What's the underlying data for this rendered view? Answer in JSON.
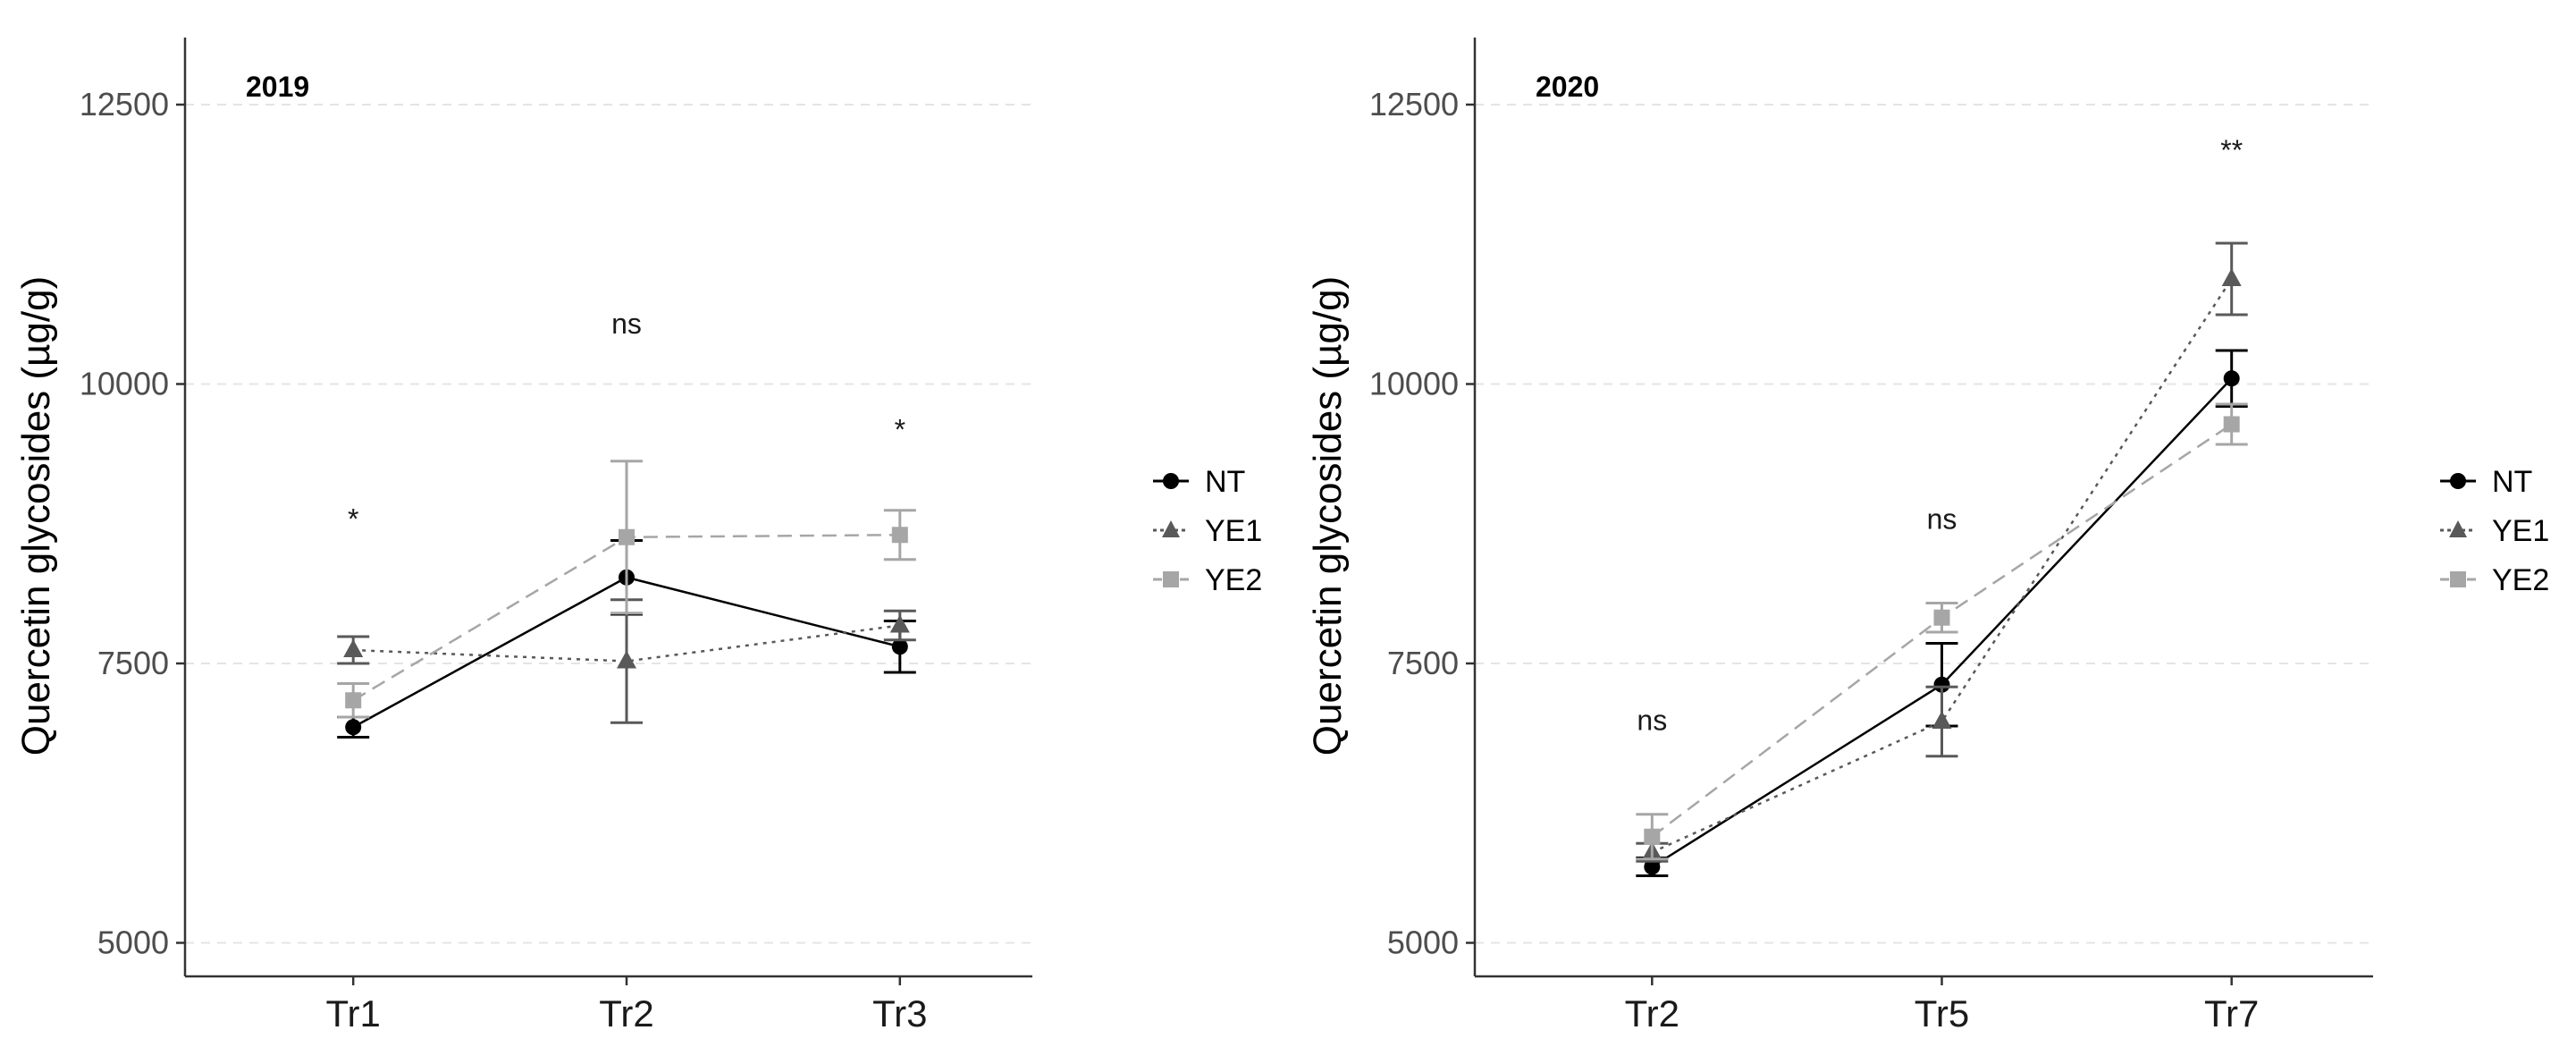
{
  "chart_data": [
    {
      "type": "line",
      "title": "",
      "panel_label": "2019",
      "xlabel": "",
      "ylabel": "Quercetin glycosides (µg/g)",
      "categories": [
        "Tr1",
        "Tr2",
        "Tr3"
      ],
      "ylim": [
        4700,
        13100
      ],
      "yticks": [
        5000,
        7500,
        10000,
        12500
      ],
      "grid": "horizontal dashed major lines",
      "legend": "right",
      "series": [
        {
          "name": "NT",
          "marker": "circle",
          "line": "solid",
          "color": "#000000",
          "values": [
            6930,
            8270,
            7650
          ],
          "err": [
            90,
            330,
            230
          ]
        },
        {
          "name": "YE1",
          "marker": "triangle",
          "line": "dotted",
          "color": "#595959",
          "values": [
            7620,
            7520,
            7840
          ],
          "err": [
            120,
            550,
            130
          ]
        },
        {
          "name": "YE2",
          "marker": "square",
          "line": "dashed",
          "color": "#a6a6a6",
          "values": [
            7170,
            8630,
            8650
          ],
          "err": [
            150,
            680,
            220
          ]
        }
      ],
      "annotations": [
        {
          "category": "Tr1",
          "text": "*",
          "y": 8800
        },
        {
          "category": "Tr2",
          "text": "ns",
          "y": 10550
        },
        {
          "category": "Tr3",
          "text": "*",
          "y": 9600
        }
      ]
    },
    {
      "type": "line",
      "title": "",
      "panel_label": "2020",
      "xlabel": "",
      "ylabel": "Quercetin glycosides (µg/g)",
      "categories": [
        "Tr2",
        "Tr5",
        "Tr7"
      ],
      "ylim": [
        4700,
        13100
      ],
      "yticks": [
        5000,
        7500,
        10000,
        12500
      ],
      "grid": "horizontal dashed major lines",
      "legend": "right",
      "series": [
        {
          "name": "NT",
          "marker": "circle",
          "line": "solid",
          "color": "#000000",
          "values": [
            5680,
            7310,
            10050
          ],
          "err": [
            80,
            370,
            250
          ]
        },
        {
          "name": "YE1",
          "marker": "triangle",
          "line": "dotted",
          "color": "#595959",
          "values": [
            5810,
            6980,
            10940
          ],
          "err": [
            80,
            310,
            320
          ]
        },
        {
          "name": "YE2",
          "marker": "square",
          "line": "dashed",
          "color": "#a6a6a6",
          "values": [
            5950,
            7910,
            9640
          ],
          "err": [
            200,
            130,
            180
          ]
        }
      ],
      "annotations": [
        {
          "category": "Tr2",
          "text": "ns",
          "y": 7000
        },
        {
          "category": "Tr5",
          "text": "ns",
          "y": 8800
        },
        {
          "category": "Tr7",
          "text": "**",
          "y": 12100
        }
      ]
    }
  ]
}
